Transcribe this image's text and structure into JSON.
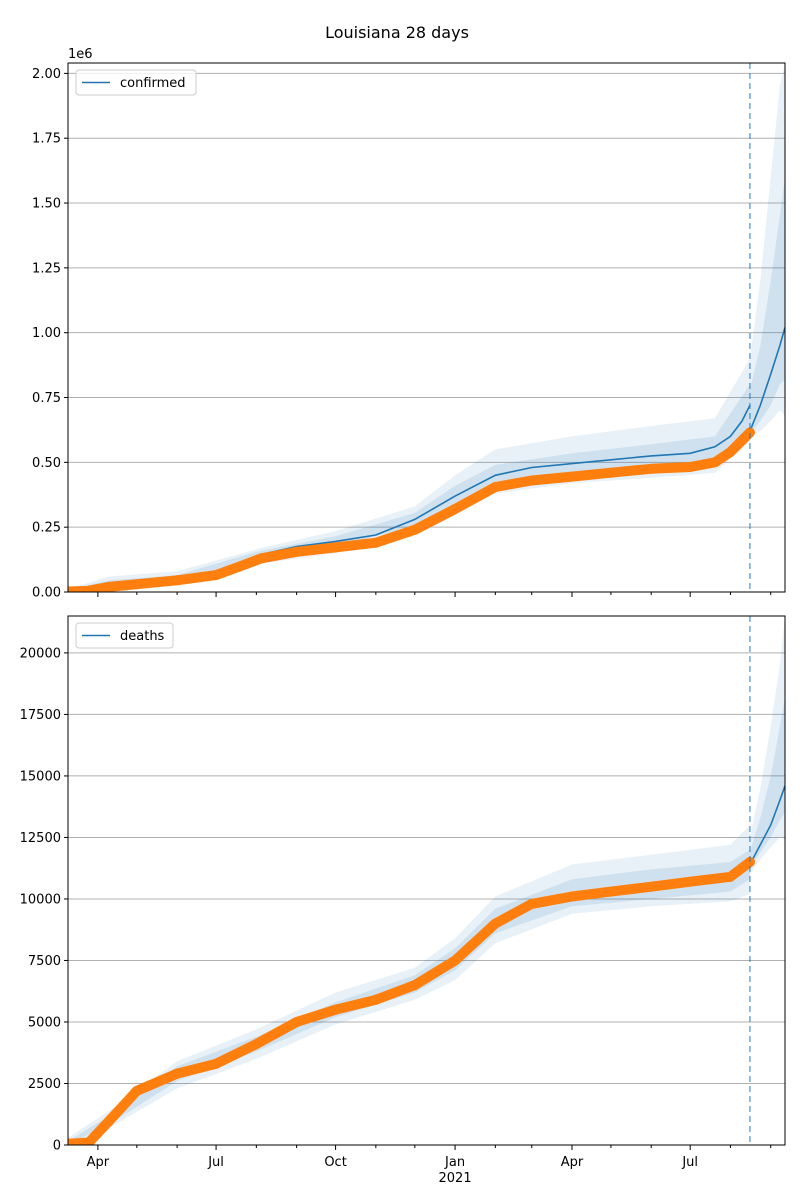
{
  "figure": {
    "title": "Louisiana 28 days",
    "colors": {
      "model": "#1f77b4",
      "observed": "#ff7f0e",
      "band": "#1f77b4",
      "grid": "#b0b0b0"
    }
  },
  "chart_data": [
    {
      "type": "line",
      "title": "Louisiana 28 days",
      "xlabel": "",
      "ylabel": "",
      "y_offset_label": "1e6",
      "xlim": [
        "2020-03-09",
        "2021-09-12"
      ],
      "ylim": [
        0,
        2.04
      ],
      "y_ticks": [
        0,
        0.25,
        0.5,
        0.75,
        1.0,
        1.25,
        1.5,
        1.75,
        2.0
      ],
      "y_tick_labels": [
        "0.00",
        "0.25",
        "0.50",
        "0.75",
        "1.00",
        "1.25",
        "1.50",
        "1.75",
        "2.00"
      ],
      "forecast_start": "2021-08-16",
      "grid": "horizontal",
      "legend_position": "upper-left",
      "series": [
        {
          "name": "confirmed",
          "role": "model",
          "x": [
            "2020-03-09",
            "2020-03-25",
            "2020-04-10",
            "2020-05-01",
            "2020-06-01",
            "2020-07-01",
            "2020-07-20",
            "2020-08-05",
            "2020-09-01",
            "2020-10-01",
            "2020-11-01",
            "2020-12-01",
            "2021-01-01",
            "2021-02-01",
            "2021-03-01",
            "2021-04-01",
            "2021-05-01",
            "2021-06-01",
            "2021-07-01",
            "2021-07-20",
            "2021-08-01",
            "2021-08-10",
            "2021-08-16"
          ],
          "values": [
            0.005,
            0.01,
            0.03,
            0.045,
            0.055,
            0.075,
            0.11,
            0.145,
            0.175,
            0.195,
            0.22,
            0.28,
            0.37,
            0.45,
            0.48,
            0.495,
            0.51,
            0.525,
            0.535,
            0.56,
            0.6,
            0.66,
            0.72
          ]
        },
        {
          "name": "",
          "role": "forecast",
          "x": [
            "2021-08-16",
            "2021-08-24",
            "2021-09-01",
            "2021-09-08",
            "2021-09-12"
          ],
          "values": [
            0.62,
            0.72,
            0.84,
            0.95,
            1.02
          ]
        },
        {
          "name": "",
          "role": "observed",
          "x": [
            "2020-03-09",
            "2020-03-25",
            "2020-04-10",
            "2020-05-01",
            "2020-06-01",
            "2020-07-01",
            "2020-07-20",
            "2020-08-05",
            "2020-09-01",
            "2020-10-01",
            "2020-11-01",
            "2020-12-01",
            "2021-01-01",
            "2021-02-01",
            "2021-03-01",
            "2021-04-01",
            "2021-05-01",
            "2021-06-01",
            "2021-07-01",
            "2021-07-20",
            "2021-08-01",
            "2021-08-10",
            "2021-08-16"
          ],
          "values": [
            0.002,
            0.005,
            0.02,
            0.03,
            0.045,
            0.065,
            0.1,
            0.13,
            0.155,
            0.172,
            0.19,
            0.24,
            0.32,
            0.405,
            0.43,
            0.445,
            0.46,
            0.475,
            0.482,
            0.5,
            0.54,
            0.585,
            0.615
          ]
        }
      ],
      "bands": [
        {
          "level": "outer",
          "x": [
            "2020-03-09",
            "2020-04-10",
            "2020-06-01",
            "2020-08-05",
            "2020-10-01",
            "2020-12-01",
            "2021-01-01",
            "2021-02-01",
            "2021-04-01",
            "2021-06-01",
            "2021-07-20",
            "2021-08-16"
          ],
          "lower": [
            0,
            0.01,
            0.035,
            0.11,
            0.15,
            0.22,
            0.3,
            0.38,
            0.42,
            0.44,
            0.46,
            0.58
          ],
          "upper": [
            0.01,
            0.06,
            0.08,
            0.17,
            0.235,
            0.33,
            0.45,
            0.55,
            0.6,
            0.64,
            0.67,
            0.9
          ]
        },
        {
          "level": "inner",
          "x": [
            "2020-03-09",
            "2020-04-10",
            "2020-06-01",
            "2020-08-05",
            "2020-10-01",
            "2020-12-01",
            "2021-01-01",
            "2021-02-01",
            "2021-04-01",
            "2021-06-01",
            "2021-07-20",
            "2021-08-16"
          ],
          "lower": [
            0,
            0.02,
            0.045,
            0.13,
            0.175,
            0.255,
            0.34,
            0.42,
            0.455,
            0.48,
            0.5,
            0.63
          ],
          "upper": [
            0.008,
            0.045,
            0.065,
            0.16,
            0.215,
            0.305,
            0.41,
            0.49,
            0.535,
            0.57,
            0.6,
            0.8
          ]
        },
        {
          "level": "forecast-outer",
          "x": [
            "2021-08-16",
            "2021-08-24",
            "2021-09-01",
            "2021-09-08",
            "2021-09-12"
          ],
          "lower": [
            0.6,
            0.62,
            0.66,
            0.7,
            0.68
          ],
          "upper": [
            0.9,
            1.2,
            1.6,
            1.95,
            2.04
          ]
        },
        {
          "level": "forecast-inner",
          "x": [
            "2021-08-16",
            "2021-08-24",
            "2021-09-01",
            "2021-09-08",
            "2021-09-12"
          ],
          "lower": [
            0.61,
            0.66,
            0.72,
            0.8,
            0.82
          ],
          "upper": [
            0.78,
            0.95,
            1.2,
            1.45,
            1.6
          ]
        }
      ]
    },
    {
      "type": "line",
      "title": "",
      "xlabel": "",
      "ylabel": "",
      "xlim": [
        "2020-03-09",
        "2021-09-12"
      ],
      "ylim": [
        0,
        21500
      ],
      "y_ticks": [
        0,
        2500,
        5000,
        7500,
        10000,
        12500,
        15000,
        17500,
        20000
      ],
      "y_tick_labels": [
        "0",
        "2500",
        "5000",
        "7500",
        "10000",
        "12500",
        "15000",
        "17500",
        "20000"
      ],
      "x_ticks": [
        "2020-04-01",
        "2020-07-01",
        "2020-10-01",
        "2021-01-01",
        "2021-04-01",
        "2021-07-01"
      ],
      "x_tick_labels": [
        "Apr",
        "Jul",
        "Oct",
        "Jan",
        "Apr",
        "Jul"
      ],
      "x_year_label": "2021",
      "forecast_start": "2021-08-16",
      "grid": "horizontal",
      "legend_position": "upper-left",
      "series": [
        {
          "name": "deaths",
          "role": "model",
          "x": [
            "2020-03-09",
            "2020-03-25",
            "2020-04-10",
            "2020-05-01",
            "2020-06-01",
            "2020-07-01",
            "2020-08-01",
            "2020-09-01",
            "2020-10-01",
            "2020-11-01",
            "2020-12-01",
            "2021-01-01",
            "2021-02-01",
            "2021-03-01",
            "2021-04-01",
            "2021-05-01",
            "2021-06-01",
            "2021-07-01",
            "2021-08-01",
            "2021-08-16"
          ],
          "values": [
            50,
            100,
            1000,
            2200,
            2900,
            3300,
            4100,
            5000,
            5500,
            5900,
            6500,
            7500,
            9000,
            9800,
            10100,
            10300,
            10500,
            10700,
            10900,
            11400
          ]
        },
        {
          "name": "",
          "role": "forecast",
          "x": [
            "2021-08-16",
            "2021-08-24",
            "2021-09-01",
            "2021-09-08",
            "2021-09-12"
          ],
          "values": [
            11400,
            12200,
            13000,
            14000,
            14600
          ]
        },
        {
          "name": "",
          "role": "observed",
          "x": [
            "2020-03-09",
            "2020-03-25",
            "2020-04-10",
            "2020-05-01",
            "2020-06-01",
            "2020-07-01",
            "2020-08-01",
            "2020-09-01",
            "2020-10-01",
            "2020-11-01",
            "2020-12-01",
            "2021-01-01",
            "2021-02-01",
            "2021-03-01",
            "2021-04-01",
            "2021-05-01",
            "2021-06-01",
            "2021-07-01",
            "2021-08-01",
            "2021-08-16"
          ],
          "values": [
            50,
            100,
            1000,
            2200,
            2900,
            3300,
            4100,
            5000,
            5500,
            5900,
            6500,
            7500,
            9000,
            9800,
            10100,
            10300,
            10500,
            10700,
            10900,
            11500
          ]
        }
      ],
      "bands": [
        {
          "level": "outer",
          "x": [
            "2020-03-09",
            "2020-04-10",
            "2020-06-01",
            "2020-08-01",
            "2020-10-01",
            "2020-12-01",
            "2021-01-01",
            "2021-02-01",
            "2021-04-01",
            "2021-06-01",
            "2021-08-01",
            "2021-08-16"
          ],
          "lower": [
            0,
            700,
            2300,
            3500,
            4900,
            5900,
            6700,
            8200,
            9400,
            9700,
            9900,
            10200
          ],
          "upper": [
            300,
            1400,
            3400,
            4700,
            6200,
            7200,
            8400,
            10100,
            11400,
            11800,
            12200,
            13000
          ]
        },
        {
          "level": "inner",
          "x": [
            "2020-03-09",
            "2020-04-10",
            "2020-06-01",
            "2020-08-01",
            "2020-10-01",
            "2020-12-01",
            "2021-01-01",
            "2021-02-01",
            "2021-04-01",
            "2021-06-01",
            "2021-08-01",
            "2021-08-16"
          ],
          "lower": [
            20,
            850,
            2600,
            3800,
            5200,
            6200,
            7100,
            8600,
            9700,
            10000,
            10300,
            10800
          ],
          "upper": [
            150,
            1200,
            3200,
            4400,
            5800,
            6900,
            8000,
            9600,
            10800,
            11200,
            11500,
            12000
          ]
        },
        {
          "level": "forecast-outer",
          "x": [
            "2021-08-16",
            "2021-08-24",
            "2021-09-01",
            "2021-09-08",
            "2021-09-12"
          ],
          "lower": [
            11000,
            11600,
            12100,
            12500,
            12400
          ],
          "upper": [
            12500,
            14500,
            17000,
            19500,
            21500
          ]
        },
        {
          "level": "forecast-inner",
          "x": [
            "2021-08-16",
            "2021-08-24",
            "2021-09-01",
            "2021-09-08",
            "2021-09-12"
          ],
          "lower": [
            11200,
            11900,
            12500,
            13200,
            13500
          ],
          "upper": [
            11900,
            13300,
            15000,
            17000,
            18200
          ]
        }
      ]
    }
  ]
}
